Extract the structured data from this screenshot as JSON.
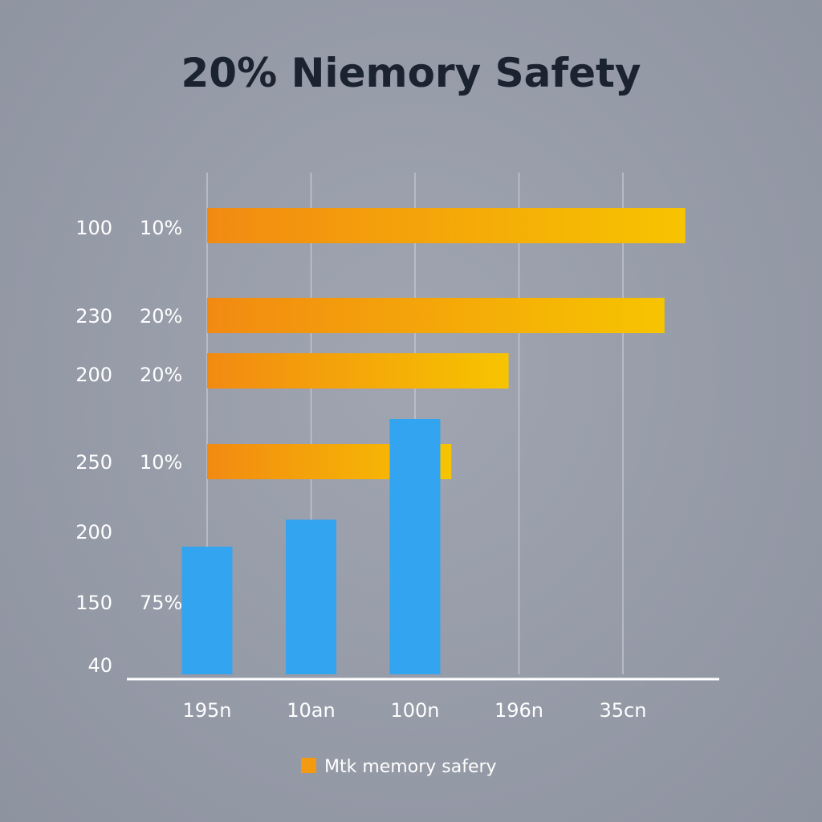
{
  "chart_data": {
    "type": "bar",
    "title": "20% Niemory Safety",
    "grid": true,
    "legend_position": "bottom-center",
    "row_labels": [
      "100",
      "230",
      "200",
      "250",
      "200",
      "150",
      "40"
    ],
    "row_percent_labels": [
      "10%",
      "20%",
      "20%",
      "10%",
      "75%"
    ],
    "x_tick_labels": [
      "195n",
      "10an",
      "100n",
      "196n",
      "35cn"
    ],
    "horizontal_series": {
      "color_start": "#f28a12",
      "color_end": "#f7c400",
      "values": [
        4.6,
        4.4,
        2.9,
        2.35
      ]
    },
    "vertical_series": {
      "color": "#33a4ef",
      "categories": [
        "195n",
        "10an",
        "100n"
      ],
      "values": [
        175,
        212,
        350
      ]
    },
    "legend": [
      {
        "label": "Mtk memory  safery",
        "color": "#f39a10"
      }
    ]
  }
}
